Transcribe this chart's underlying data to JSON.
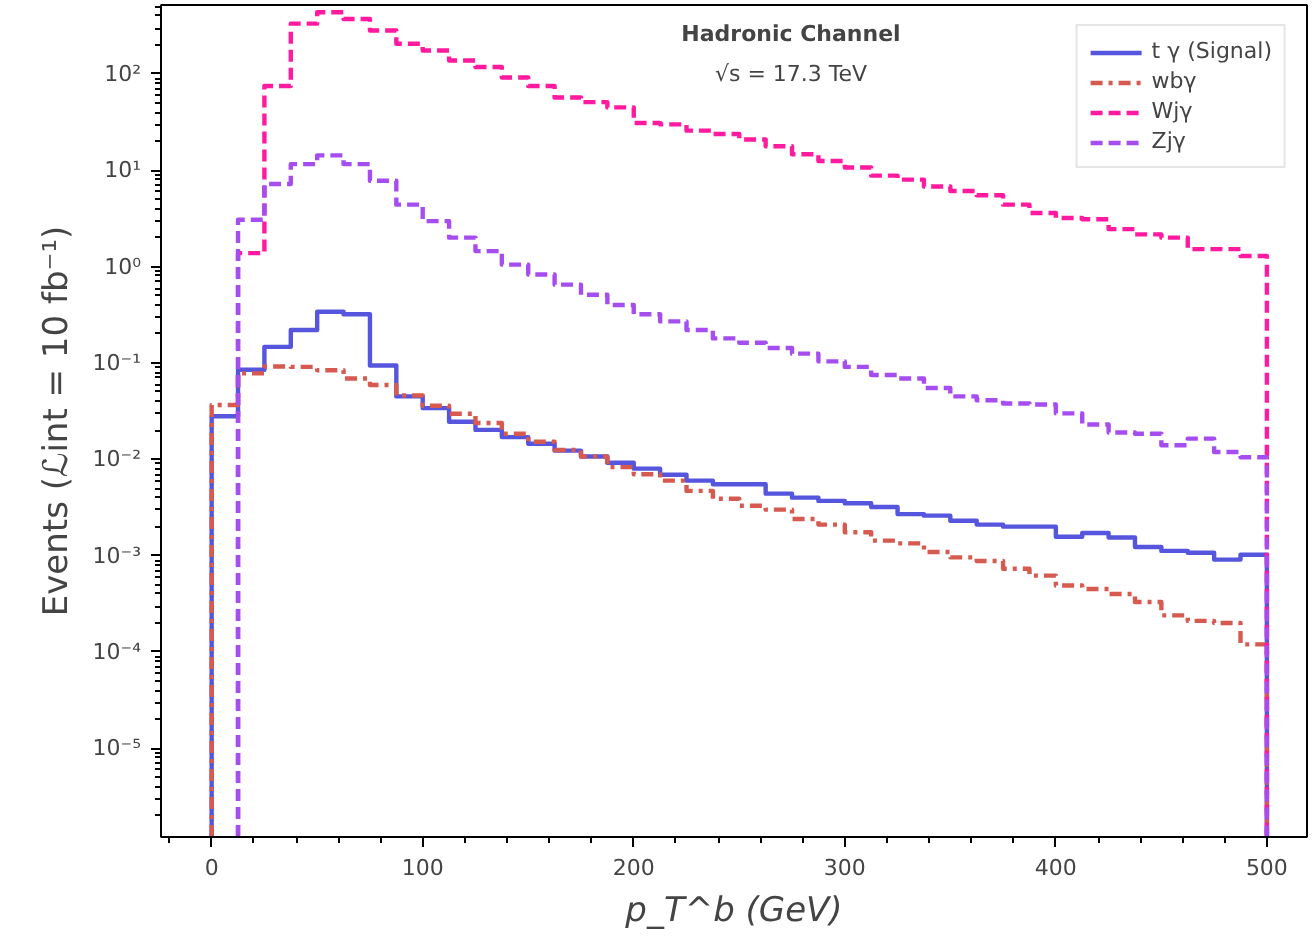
{
  "chart_data": {
    "type": "histogram",
    "title": "Hadronic Channel",
    "subtitle": "√s = 17.3 TeV",
    "xlabel": "p_T^b (GeV)",
    "ylabel": "Events (ℒint = 10 fb⁻¹)",
    "bins": [
      0,
      12.5,
      25,
      37.5,
      50,
      62.5,
      75,
      87.5,
      100,
      112.5,
      125,
      137.5,
      150,
      162.5,
      175,
      187.5,
      200,
      212.5,
      225,
      237.5,
      250,
      262.5,
      275,
      287.5,
      300,
      312.5,
      325,
      337.5,
      350,
      362.5,
      375,
      387.5,
      400,
      412.5,
      425,
      437.5,
      450,
      462.5,
      475,
      487.5,
      500
    ],
    "series": [
      {
        "name": "t γ (Signal)",
        "color": "#5555dd",
        "line_style": "solid",
        "values": [
          0.028,
          0.085,
          0.147,
          0.22,
          0.34,
          0.32,
          0.094,
          0.045,
          0.034,
          0.0245,
          0.0202,
          0.017,
          0.0145,
          0.0123,
          0.0107,
          0.0092,
          0.008,
          0.0069,
          0.006,
          0.0055,
          0.0055,
          0.0044,
          0.004,
          0.0037,
          0.0035,
          0.0032,
          0.0027,
          0.0026,
          0.0023,
          0.0021,
          0.002,
          0.002,
          0.00157,
          0.00172,
          0.00154,
          0.00123,
          0.00112,
          0.00107,
          0.00091,
          0.00102
        ]
      },
      {
        "name": "wbγ",
        "color": "#d65a50",
        "line_style": "dashdot",
        "values": [
          0.0366,
          0.078,
          0.092,
          0.091,
          0.084,
          0.069,
          0.059,
          0.046,
          0.036,
          0.0297,
          0.0238,
          0.0184,
          0.0152,
          0.0125,
          0.0107,
          0.0083,
          0.007,
          0.006,
          0.0047,
          0.0039,
          0.0033,
          0.003,
          0.0024,
          0.0021,
          0.00175,
          0.00143,
          0.00134,
          0.00109,
          0.00096,
          0.00088,
          0.00073,
          0.00062,
          0.00049,
          0.00045,
          0.0004,
          0.00033,
          0.00024,
          0.00021,
          0.0002,
          0.00012
        ]
      },
      {
        "name": "Wjγ",
        "color": "#ff1aa0",
        "line_style": "dashed",
        "bins": [
          12.5,
          25,
          37.5,
          50,
          62.5,
          75,
          87.5,
          100,
          112.5,
          125,
          137.5,
          150,
          162.5,
          175,
          187.5,
          200,
          212.5,
          225,
          237.5,
          250,
          262.5,
          275,
          287.5,
          300,
          312.5,
          325,
          337.5,
          350,
          362.5,
          375,
          387.5,
          400,
          412.5,
          425,
          437.5,
          450,
          462.5,
          475,
          487.5,
          500
        ],
        "values": [
          1.38,
          75,
          333,
          437,
          372,
          283,
          206,
          175,
          138,
          118,
          92,
          75,
          57,
          51,
          45,
          31,
          30,
          25.8,
          23.8,
          20.9,
          17.8,
          14.7,
          12.5,
          10.7,
          8.8,
          8.0,
          6.8,
          6.1,
          5.5,
          4.4,
          3.6,
          3.2,
          3.1,
          2.45,
          2.16,
          2.0,
          1.52,
          1.52,
          1.29
        ]
      },
      {
        "name": "Zjγ",
        "color": "#a64df0",
        "line_style": "dashed",
        "bins": [
          12.5,
          25,
          37.5,
          50,
          62.5,
          75,
          87.5,
          100,
          112.5,
          125,
          137.5,
          150,
          162.5,
          175,
          187.5,
          200,
          212.5,
          225,
          237.5,
          250,
          262.5,
          275,
          287.5,
          300,
          312.5,
          325,
          337.5,
          350,
          362.5,
          375,
          387.5,
          400,
          412.5,
          425,
          437.5,
          450,
          462.5,
          475,
          487.5,
          500
        ],
        "values": [
          3.07,
          7.2,
          11.6,
          14.3,
          11.6,
          7.8,
          4.4,
          2.97,
          2.0,
          1.45,
          1.05,
          0.83,
          0.65,
          0.51,
          0.4,
          0.32,
          0.27,
          0.22,
          0.18,
          0.162,
          0.143,
          0.125,
          0.104,
          0.091,
          0.075,
          0.069,
          0.055,
          0.045,
          0.041,
          0.038,
          0.037,
          0.03,
          0.023,
          0.019,
          0.0184,
          0.014,
          0.0164,
          0.0119,
          0.0105
        ]
      }
    ],
    "log": "y",
    "xlim": [
      -24,
      519
    ],
    "ylim": [
      1.2e-06,
      520
    ],
    "xticks": [
      0,
      100,
      200,
      300,
      400,
      500
    ],
    "yticks": [
      {
        "value": 1e-05,
        "label": "10⁻⁵"
      },
      {
        "value": 0.0001,
        "label": "10⁻⁴"
      },
      {
        "value": 0.001,
        "label": "10⁻³"
      },
      {
        "value": 0.01,
        "label": "10⁻²"
      },
      {
        "value": 0.1,
        "label": "10⁻¹"
      },
      {
        "value": 1,
        "label": "10⁰"
      },
      {
        "value": 10,
        "label": "10¹"
      },
      {
        "value": 100,
        "label": "10²"
      }
    ],
    "grid": false,
    "legend": "top right"
  }
}
